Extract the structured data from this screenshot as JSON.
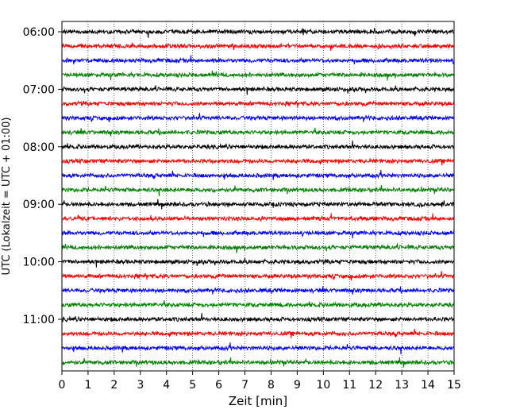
{
  "chart_data": {
    "type": "line",
    "xlabel": "Zeit  [min]",
    "ylabel": "UTC (Lokalzeit = UTC + 01:00)",
    "xlim": [
      0,
      15
    ],
    "x_ticks": [
      "0",
      "1",
      "2",
      "3",
      "4",
      "5",
      "6",
      "7",
      "8",
      "9",
      "10",
      "11",
      "12",
      "13",
      "14",
      "15"
    ],
    "y_ticks": [
      "06:00",
      "07:00",
      "08:00",
      "09:00",
      "10:00",
      "11:00"
    ],
    "grid": "vertical-dotted",
    "trace_interval_min": 15,
    "colors": [
      "#000000",
      "#ff0000",
      "#0000ff",
      "#008000"
    ],
    "traces": [
      {
        "start": "06:00",
        "color": "#000000"
      },
      {
        "start": "06:15",
        "color": "#ff0000"
      },
      {
        "start": "06:30",
        "color": "#0000ff"
      },
      {
        "start": "06:45",
        "color": "#008000"
      },
      {
        "start": "07:00",
        "color": "#000000"
      },
      {
        "start": "07:15",
        "color": "#ff0000"
      },
      {
        "start": "07:30",
        "color": "#0000ff"
      },
      {
        "start": "07:45",
        "color": "#008000"
      },
      {
        "start": "08:00",
        "color": "#000000"
      },
      {
        "start": "08:15",
        "color": "#ff0000"
      },
      {
        "start": "08:30",
        "color": "#0000ff"
      },
      {
        "start": "08:45",
        "color": "#008000"
      },
      {
        "start": "09:00",
        "color": "#000000"
      },
      {
        "start": "09:15",
        "color": "#ff0000"
      },
      {
        "start": "09:30",
        "color": "#0000ff"
      },
      {
        "start": "09:45",
        "color": "#008000"
      },
      {
        "start": "10:00",
        "color": "#000000"
      },
      {
        "start": "10:15",
        "color": "#ff0000"
      },
      {
        "start": "10:30",
        "color": "#0000ff"
      },
      {
        "start": "10:45",
        "color": "#008000"
      },
      {
        "start": "11:00",
        "color": "#000000"
      },
      {
        "start": "11:15",
        "color": "#ff0000"
      },
      {
        "start": "11:30",
        "color": "#0000ff"
      },
      {
        "start": "11:45",
        "color": "#008000"
      }
    ]
  }
}
